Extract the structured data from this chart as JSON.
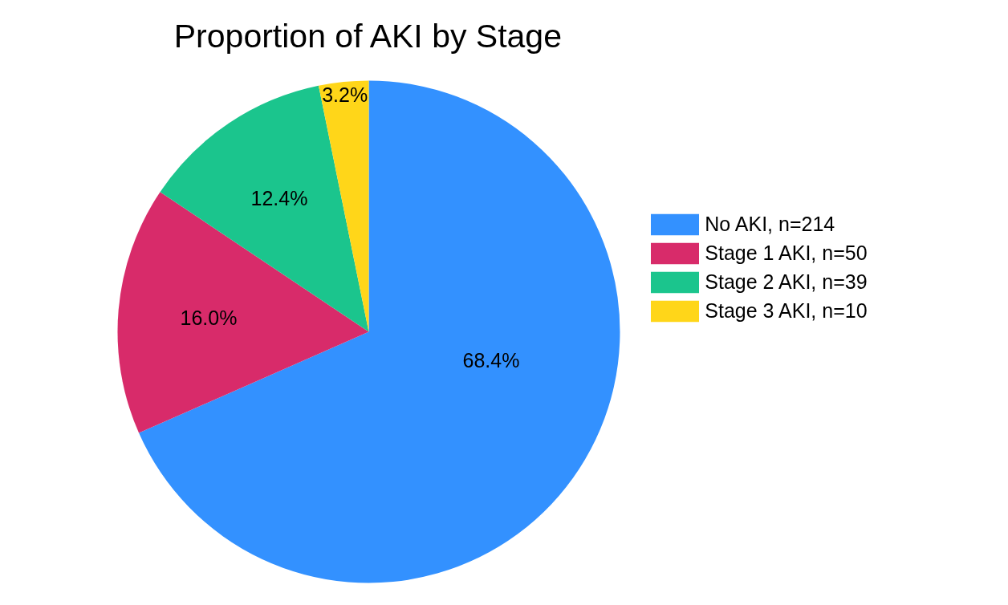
{
  "chart_data": {
    "type": "pie",
    "title": "Proportion of AKI by Stage",
    "categories": [
      "No AKI, n=214",
      "Stage 1 AKI, n=50",
      "Stage 2 AKI, n=39",
      "Stage 3 AKI, n=10"
    ],
    "values": [
      68.4,
      16.0,
      12.4,
      3.2
    ],
    "colors": [
      "#3391ff",
      "#d82b6a",
      "#1bc58d",
      "#ffd619"
    ],
    "value_labels": [
      "68.4%",
      "16.0%",
      "12.4%",
      "3.2%"
    ],
    "legend": "right"
  }
}
